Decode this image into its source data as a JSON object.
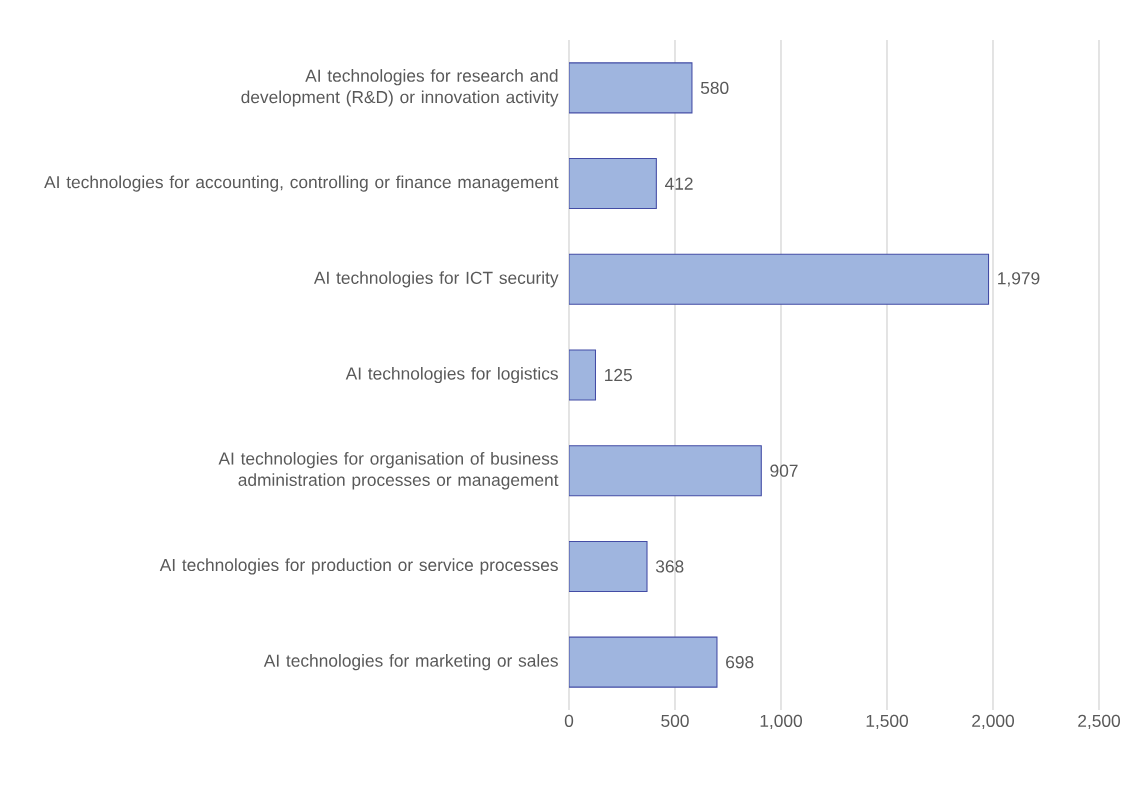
{
  "chart_data": {
    "type": "bar",
    "orientation": "horizontal",
    "categories": [
      "AI technologies for research and development (R&D) or innovation activity",
      "AI technologies for accounting, controlling or finance management",
      "AI technologies for ICT security",
      "AI technologies for logistics",
      "AI technologies for organisation of business administration processes or management",
      "AI technologies for production or service processes",
      "AI technologies for marketing or sales"
    ],
    "values": [
      580,
      412,
      1979,
      125,
      907,
      368,
      698
    ],
    "value_labels": [
      "580",
      "412",
      "1,979",
      "125",
      "907",
      "368",
      "698"
    ],
    "color": "#9fb5df",
    "xlim": [
      0,
      2500
    ],
    "xticks": [
      0,
      500,
      {
        "value": 1000,
        "label": "1,000"
      },
      {
        "value": 1500,
        "label": "1,500"
      },
      {
        "value": 2000,
        "label": "2,000"
      },
      {
        "value": 2500,
        "label": "2,500"
      }
    ],
    "grid": "x"
  }
}
